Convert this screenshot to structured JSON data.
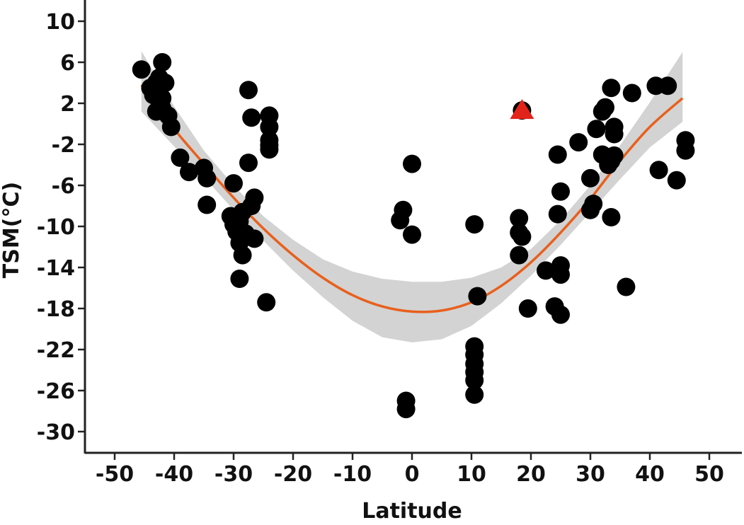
{
  "chart_data": {
    "type": "scatter",
    "title": "",
    "xlabel": "Latitude",
    "ylabel": "TSM(°C)",
    "xlim": [
      -55,
      55
    ],
    "ylim": [
      -32,
      12
    ],
    "xticks": [
      -50,
      -40,
      -30,
      -20,
      -10,
      0,
      10,
      20,
      30,
      40,
      50
    ],
    "yticks": [
      10,
      6,
      2,
      -2,
      -6,
      -10,
      -14,
      -18,
      -22,
      -26,
      -30
    ],
    "grid": false,
    "colors": {
      "points": "#000000",
      "fit_line": "#E8601C",
      "confidence_band": "#D3D3D3",
      "highlight": "#E2231A"
    },
    "points": [
      [
        -45.5,
        5.3
      ],
      [
        -44,
        3.5
      ],
      [
        -43.5,
        2.8
      ],
      [
        -43,
        4
      ],
      [
        -42.5,
        4.5
      ],
      [
        -42,
        6
      ],
      [
        -41.5,
        4
      ],
      [
        -42,
        2.5
      ],
      [
        -43,
        1.2
      ],
      [
        -41,
        0.8
      ],
      [
        -40.5,
        -0.3
      ],
      [
        -42,
        1.5
      ],
      [
        -39,
        -3.3
      ],
      [
        -37.5,
        -4.7
      ],
      [
        -35,
        -4.3
      ],
      [
        -34.5,
        -5.3
      ],
      [
        -34.5,
        -7.9
      ],
      [
        -30,
        -5.8
      ],
      [
        -30.5,
        -9
      ],
      [
        -30,
        -9.8
      ],
      [
        -29.5,
        -10.5
      ],
      [
        -29,
        -9.5
      ],
      [
        -28.5,
        -8.6
      ],
      [
        -28,
        -10.7
      ],
      [
        -29,
        -11.6
      ],
      [
        -26.5,
        -11.2
      ],
      [
        -28.5,
        -12.8
      ],
      [
        -29,
        -15.1
      ],
      [
        -27,
        -8
      ],
      [
        -26.5,
        -7.2
      ],
      [
        -27.5,
        -3.8
      ],
      [
        -27.5,
        3.3
      ],
      [
        -27,
        0.6
      ],
      [
        -24,
        0.8
      ],
      [
        -24,
        -0.3
      ],
      [
        -24,
        -1.6
      ],
      [
        -24,
        -2.1
      ],
      [
        -24,
        -2.5
      ],
      [
        -24.5,
        -17.4
      ],
      [
        -1.5,
        -8.4
      ],
      [
        -2,
        -9.4
      ],
      [
        0,
        -10.8
      ],
      [
        0,
        -3.9
      ],
      [
        -1,
        -27
      ],
      [
        -1,
        -27.8
      ],
      [
        10.5,
        -9.8
      ],
      [
        11,
        -16.8
      ],
      [
        10.5,
        -21.7
      ],
      [
        10.5,
        -22.5
      ],
      [
        10.5,
        -23.4
      ],
      [
        10.5,
        -24.2
      ],
      [
        10.5,
        -25
      ],
      [
        10.5,
        -26.4
      ],
      [
        18.5,
        1.3
      ],
      [
        18,
        -9.2
      ],
      [
        18,
        -10.6
      ],
      [
        18.5,
        -11
      ],
      [
        18,
        -12.8
      ],
      [
        19.5,
        -18
      ],
      [
        22.5,
        -14.3
      ],
      [
        24,
        -17.8
      ],
      [
        25,
        -18.6
      ],
      [
        25,
        -13.8
      ],
      [
        25,
        -14.7
      ],
      [
        24.5,
        -3
      ],
      [
        25,
        -6.6
      ],
      [
        24.5,
        -8.8
      ],
      [
        28,
        -1.8
      ],
      [
        30,
        -5.3
      ],
      [
        30,
        -8.4
      ],
      [
        30.5,
        -7.8
      ],
      [
        31,
        -0.5
      ],
      [
        32,
        1.2
      ],
      [
        32.5,
        1.6
      ],
      [
        32,
        -3
      ],
      [
        33,
        -4
      ],
      [
        33.5,
        -9.1
      ],
      [
        33.5,
        3.5
      ],
      [
        34,
        -0.3
      ],
      [
        34,
        -1
      ],
      [
        34,
        -3.1
      ],
      [
        33.5,
        -3.6
      ],
      [
        36,
        -15.9
      ],
      [
        37,
        3
      ],
      [
        41,
        3.7
      ],
      [
        41.5,
        -4.5
      ],
      [
        43,
        3.7
      ],
      [
        44.5,
        -5.5
      ],
      [
        46,
        -1.6
      ],
      [
        46,
        -2.6
      ]
    ],
    "highlight_points": [
      {
        "x": 18.5,
        "y": 1.3,
        "marker": "triangle"
      }
    ],
    "fit_curve": {
      "x": [
        -45.5,
        -40,
        -35,
        -30,
        -25,
        -20,
        -15,
        -10,
        -5,
        0,
        5,
        10,
        15,
        20,
        25,
        30,
        35,
        40,
        45.5
      ],
      "y": [
        3.8,
        -0.5,
        -3.9,
        -7.2,
        -10.2,
        -12.8,
        -15,
        -16.7,
        -17.8,
        -18.3,
        -18.2,
        -17.4,
        -15.8,
        -13.5,
        -10.6,
        -7.3,
        -3.6,
        -0.3,
        2.5
      ],
      "lower": [
        1.2,
        -2.2,
        -5.2,
        -8.4,
        -11.4,
        -14.3,
        -16.9,
        -19.2,
        -20.8,
        -21.3,
        -21,
        -19.7,
        -17.5,
        -14.8,
        -11.8,
        -8.6,
        -5.4,
        -2.3,
        0.2
      ],
      "upper": [
        7.1,
        1.7,
        -2.6,
        -6,
        -9,
        -11.3,
        -13.2,
        -14.4,
        -15.1,
        -15.4,
        -15.4,
        -15,
        -14,
        -12.2,
        -9.4,
        -6,
        -2.1,
        2.1,
        7
      ]
    }
  }
}
